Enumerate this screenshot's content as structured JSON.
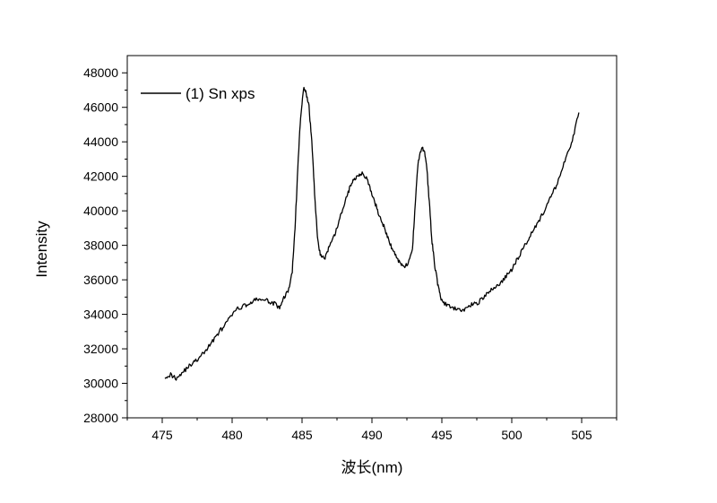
{
  "chart_data": {
    "type": "line",
    "xlabel": "波长(nm)",
    "ylabel": "Intensity",
    "xlim": [
      472.5,
      507.5
    ],
    "ylim": [
      28000,
      49000
    ],
    "x_ticks": [
      475,
      480,
      485,
      490,
      495,
      500,
      505
    ],
    "y_ticks": [
      28000,
      30000,
      32000,
      34000,
      36000,
      38000,
      40000,
      42000,
      44000,
      46000,
      48000
    ],
    "grid": false,
    "legend_position": "top-left",
    "series": [
      {
        "name": "(1) Sn xps",
        "color": "#000000",
        "points": [
          [
            475.2,
            30400
          ],
          [
            475.6,
            30500
          ],
          [
            476.0,
            30300
          ],
          [
            476.4,
            30600
          ],
          [
            476.8,
            30900
          ],
          [
            477.2,
            31200
          ],
          [
            477.6,
            31400
          ],
          [
            478.0,
            31800
          ],
          [
            478.4,
            32200
          ],
          [
            478.8,
            32700
          ],
          [
            479.2,
            33100
          ],
          [
            479.6,
            33500
          ],
          [
            480.0,
            34000
          ],
          [
            480.4,
            34300
          ],
          [
            480.8,
            34500
          ],
          [
            481.2,
            34600
          ],
          [
            481.6,
            34800
          ],
          [
            482.0,
            34900
          ],
          [
            482.4,
            34800
          ],
          [
            482.8,
            34700
          ],
          [
            483.1,
            34600
          ],
          [
            483.4,
            34300
          ],
          [
            483.7,
            35000
          ],
          [
            484.0,
            35300
          ],
          [
            484.3,
            36500
          ],
          [
            484.5,
            39000
          ],
          [
            484.7,
            42500
          ],
          [
            484.9,
            45500
          ],
          [
            485.1,
            47100
          ],
          [
            485.3,
            46800
          ],
          [
            485.5,
            46000
          ],
          [
            485.7,
            44000
          ],
          [
            485.9,
            41000
          ],
          [
            486.1,
            38500
          ],
          [
            486.3,
            37500
          ],
          [
            486.6,
            37200
          ],
          [
            486.9,
            37800
          ],
          [
            487.2,
            38300
          ],
          [
            487.5,
            39000
          ],
          [
            487.8,
            39800
          ],
          [
            488.1,
            40600
          ],
          [
            488.4,
            41300
          ],
          [
            488.7,
            41800
          ],
          [
            489.0,
            42100
          ],
          [
            489.3,
            42200
          ],
          [
            489.6,
            41900
          ],
          [
            489.9,
            41200
          ],
          [
            490.2,
            40500
          ],
          [
            490.5,
            39800
          ],
          [
            490.8,
            39200
          ],
          [
            491.1,
            38500
          ],
          [
            491.4,
            37900
          ],
          [
            491.7,
            37400
          ],
          [
            492.0,
            37000
          ],
          [
            492.3,
            36800
          ],
          [
            492.6,
            36900
          ],
          [
            492.9,
            37800
          ],
          [
            493.1,
            40500
          ],
          [
            493.3,
            42800
          ],
          [
            493.5,
            43500
          ],
          [
            493.7,
            43600
          ],
          [
            493.9,
            42800
          ],
          [
            494.1,
            40500
          ],
          [
            494.3,
            38200
          ],
          [
            494.5,
            36800
          ],
          [
            494.7,
            35800
          ],
          [
            494.9,
            35000
          ],
          [
            495.2,
            34600
          ],
          [
            495.6,
            34400
          ],
          [
            496.0,
            34300
          ],
          [
            496.4,
            34200
          ],
          [
            496.8,
            34400
          ],
          [
            497.2,
            34600
          ],
          [
            497.6,
            34700
          ],
          [
            498.0,
            35000
          ],
          [
            498.4,
            35300
          ],
          [
            498.8,
            35600
          ],
          [
            499.2,
            35800
          ],
          [
            499.6,
            36200
          ],
          [
            500.0,
            36600
          ],
          [
            500.4,
            37200
          ],
          [
            500.8,
            37800
          ],
          [
            501.2,
            38400
          ],
          [
            501.6,
            39000
          ],
          [
            502.0,
            39500
          ],
          [
            502.4,
            40100
          ],
          [
            502.8,
            40800
          ],
          [
            503.2,
            41500
          ],
          [
            503.6,
            42400
          ],
          [
            504.0,
            43300
          ],
          [
            504.4,
            44300
          ],
          [
            504.8,
            45700
          ]
        ]
      }
    ]
  }
}
